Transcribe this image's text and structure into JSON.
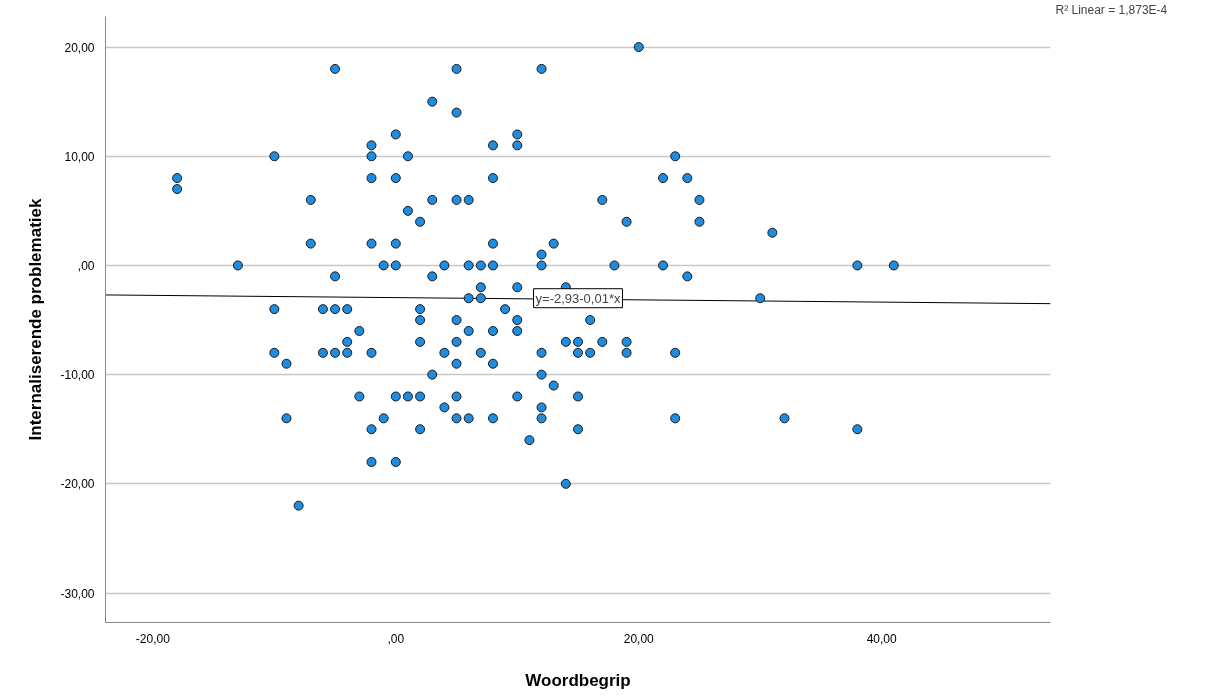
{
  "chart_data": {
    "type": "scatter",
    "xlabel": "Woordbegrip",
    "ylabel": "Internaliserende problematiek",
    "annotations": [
      "R² Linear = 1,873E-4",
      {
        "text": "y=-2,93-0,01*x",
        "x": 15,
        "y": -3
      }
    ],
    "xlim": [
      -23.9,
      53.9
    ],
    "ylim": [
      -32.7,
      22.8
    ],
    "xticks": [
      {
        "value": -20,
        "label": "-20,00"
      },
      {
        "value": 0,
        "label": ",00"
      },
      {
        "value": 20,
        "label": "20,00"
      },
      {
        "value": 40,
        "label": "40,00"
      }
    ],
    "yticks": [
      {
        "value": -30,
        "label": "-30,00"
      },
      {
        "value": -20,
        "label": "-20,00"
      },
      {
        "value": -10,
        "label": "-10,00"
      },
      {
        "value": 0,
        "label": ",00"
      },
      {
        "value": 10,
        "label": "10,00"
      },
      {
        "value": 20,
        "label": "20,00"
      }
    ],
    "grid": "y",
    "series": [
      {
        "marker": "circle",
        "color": "#1f8ce0",
        "x": [
          -5,
          3,
          0,
          -2,
          -10,
          -2,
          1,
          -18,
          -18,
          -2,
          0,
          -7,
          3,
          1,
          2,
          -7,
          -2,
          0,
          -13,
          -1,
          0,
          -5,
          3,
          -10,
          -6,
          -5,
          -4,
          2,
          2,
          -3,
          -4,
          2,
          -10,
          -9,
          -6,
          -5,
          -4,
          -2,
          3,
          -3,
          0,
          1,
          2,
          -9,
          -1,
          -2,
          2,
          -2,
          0,
          -8,
          20,
          5,
          12,
          5,
          10,
          8,
          10,
          23,
          8,
          22,
          24,
          5,
          6,
          17,
          25,
          19,
          25,
          8,
          13,
          12,
          4,
          6,
          7,
          8,
          12,
          18,
          22,
          24,
          7,
          10,
          14,
          6,
          7,
          9,
          5,
          10,
          16,
          6,
          8,
          10,
          5,
          14,
          15,
          17,
          19,
          4,
          7,
          12,
          15,
          16,
          19,
          23,
          5,
          8,
          12,
          13,
          5,
          10,
          15,
          4,
          12,
          5,
          6,
          8,
          12,
          23,
          15,
          11,
          14,
          31,
          38,
          41,
          30,
          32,
          38
        ],
        "values": [
          18,
          15,
          12,
          11,
          10,
          10,
          10,
          8,
          7,
          8,
          8,
          6,
          6,
          5,
          4,
          2,
          2,
          2,
          0,
          0,
          0,
          -1,
          -1,
          -4,
          -4,
          -4,
          -4,
          -4,
          -5,
          -6,
          -7,
          -7,
          -8,
          -9,
          -8,
          -8,
          -8,
          -8,
          -10,
          -12,
          -12,
          -12,
          -12,
          -14,
          -14,
          -15,
          -15,
          -18,
          -18,
          -22,
          20,
          18,
          18,
          14,
          12,
          11,
          11,
          10,
          8,
          8,
          8,
          6,
          6,
          6,
          6,
          4,
          4,
          2,
          2,
          1,
          0,
          0,
          0,
          0,
          0,
          0,
          0,
          -1,
          -2,
          -2,
          -2,
          -3,
          -3,
          -4,
          -5,
          -5,
          -5,
          -6,
          -6,
          -6,
          -7,
          -7,
          -7,
          -7,
          -7,
          -8,
          -8,
          -8,
          -8,
          -8,
          -8,
          -8,
          -9,
          -9,
          -10,
          -11,
          -12,
          -12,
          -12,
          -13,
          -13,
          -14,
          -14,
          -14,
          -14,
          -14,
          -15,
          -16,
          -20,
          3,
          0,
          0,
          -3,
          -14,
          -15
        ]
      },
      {
        "type": "line",
        "color": "#000000",
        "line_style": "solid",
        "x": [
          -23.9,
          53.9
        ],
        "values": [
          -2.7,
          -3.5
        ]
      }
    ]
  }
}
